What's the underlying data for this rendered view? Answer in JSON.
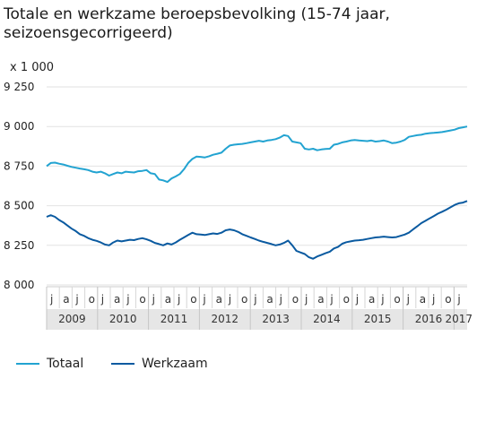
{
  "chart_data": {
    "type": "line",
    "title": "Totale en werkzame beroepsbevolking (15-74 jaar, seizoensgecorrigeerd)",
    "unit_label": "x 1 000",
    "ylim": [
      8000,
      9250
    ],
    "y_ticks": [
      8000,
      8250,
      8500,
      8750,
      9000,
      9250
    ],
    "y_tick_labels": [
      "8 000",
      "8 250",
      "8 500",
      "8 750",
      "9 000",
      "9 250"
    ],
    "month_labels": [
      "j",
      "a",
      "j",
      "o"
    ],
    "years": [
      "2009",
      "2010",
      "2011",
      "2012",
      "2013",
      "2014",
      "2015",
      "2016",
      "2017"
    ],
    "grid": "horizontal",
    "legend_position": "bottom-left",
    "colors": {
      "Totaal": "#22a3d1",
      "Werkzaam": "#0a5aa0",
      "grid": "#e2e2e2",
      "axis_band": "#e6e6e6"
    },
    "series": [
      {
        "name": "Totaal",
        "color": "#22a3d1",
        "values": [
          8750,
          8770,
          8772,
          8765,
          8760,
          8752,
          8745,
          8740,
          8735,
          8730,
          8725,
          8715,
          8710,
          8715,
          8705,
          8690,
          8700,
          8710,
          8705,
          8715,
          8712,
          8710,
          8718,
          8720,
          8725,
          8705,
          8700,
          8665,
          8660,
          8650,
          8672,
          8685,
          8700,
          8730,
          8770,
          8795,
          8810,
          8808,
          8805,
          8812,
          8822,
          8828,
          8835,
          8860,
          8880,
          8885,
          8888,
          8890,
          8895,
          8900,
          8905,
          8910,
          8905,
          8912,
          8915,
          8920,
          8930,
          8945,
          8940,
          8905,
          8900,
          8895,
          8860,
          8855,
          8860,
          8850,
          8855,
          8858,
          8860,
          8885,
          8890,
          8900,
          8905,
          8912,
          8915,
          8912,
          8910,
          8908,
          8912,
          8905,
          8908,
          8912,
          8905,
          8895,
          8898,
          8905,
          8915,
          8935,
          8940,
          8945,
          8948,
          8955,
          8958,
          8960,
          8962,
          8965,
          8970,
          8975,
          8980,
          8990,
          8995,
          9000
        ]
      },
      {
        "name": "Werkzaam",
        "color": "#0a5aa0",
        "values": [
          8430,
          8440,
          8430,
          8410,
          8395,
          8375,
          8355,
          8340,
          8320,
          8310,
          8295,
          8285,
          8278,
          8268,
          8255,
          8250,
          8268,
          8280,
          8275,
          8280,
          8285,
          8283,
          8290,
          8295,
          8288,
          8278,
          8265,
          8258,
          8250,
          8262,
          8255,
          8268,
          8285,
          8300,
          8315,
          8330,
          8320,
          8318,
          8315,
          8320,
          8325,
          8322,
          8330,
          8345,
          8350,
          8345,
          8335,
          8320,
          8310,
          8300,
          8290,
          8280,
          8272,
          8265,
          8258,
          8250,
          8255,
          8265,
          8280,
          8250,
          8215,
          8205,
          8195,
          8175,
          8165,
          8180,
          8190,
          8200,
          8210,
          8230,
          8240,
          8260,
          8270,
          8275,
          8280,
          8282,
          8285,
          8290,
          8295,
          8300,
          8302,
          8305,
          8302,
          8300,
          8302,
          8310,
          8318,
          8330,
          8350,
          8370,
          8390,
          8405,
          8420,
          8435,
          8450,
          8462,
          8475,
          8490,
          8505,
          8515,
          8520,
          8530
        ]
      }
    ]
  }
}
